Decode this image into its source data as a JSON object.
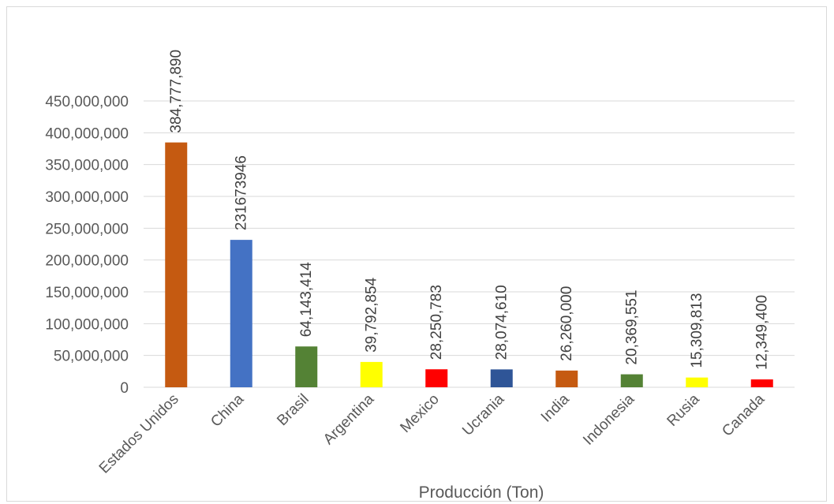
{
  "chart_data": {
    "type": "bar",
    "categories": [
      "Estados Unidos",
      "China",
      "Brasil",
      "Argentina",
      "Mexico",
      "Ucrania",
      "India",
      "Indonesia",
      "Rusia",
      "Canada"
    ],
    "values": [
      384777890,
      231673946,
      64143414,
      39792854,
      28250783,
      28074610,
      26260000,
      20369551,
      15309813,
      12349400
    ],
    "data_labels": [
      "384,777,890",
      "231673946",
      "64,143,414",
      "39,792,854",
      "28,250,783",
      "28,074,610",
      "26,260,000",
      "20,369,551",
      "15,309,813",
      "12,349,400"
    ],
    "bar_colors": [
      "#c55a11",
      "#4472c4",
      "#548235",
      "#ffff00",
      "#ff0000",
      "#2f5597",
      "#c55a11",
      "#548235",
      "#ffff00",
      "#ff0000"
    ],
    "yticks": [
      "0",
      "50,000,000",
      "100,000,000",
      "150,000,000",
      "200,000,000",
      "250,000,000",
      "300,000,000",
      "350,000,000",
      "400,000,000",
      "450,000,000"
    ],
    "ylim": [
      0,
      450000000
    ],
    "xlabel": "Producción  (Ton)",
    "ylabel": "",
    "title": "",
    "grid": true,
    "gridline_color": "#d9d9d9"
  }
}
